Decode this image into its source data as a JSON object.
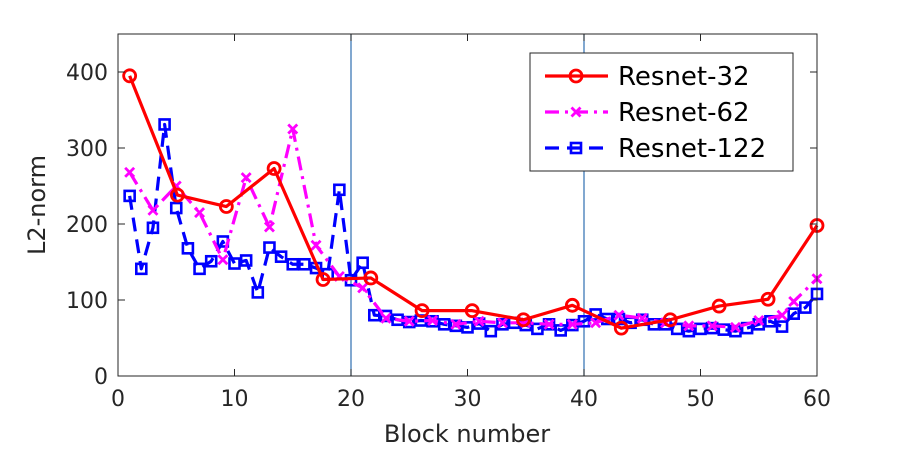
{
  "chart_data": {
    "type": "line",
    "title": "",
    "xlabel": "Block number",
    "ylabel": "L2-norm",
    "xlim": [
      0,
      60
    ],
    "ylim": [
      0,
      450
    ],
    "xticks": [
      0,
      10,
      20,
      30,
      40,
      50,
      60
    ],
    "yticks": [
      0,
      100,
      200,
      300,
      400
    ],
    "grid": false,
    "legend_position": "top-right",
    "vlines": [
      20,
      40
    ],
    "series": [
      {
        "name": "Resnet-32",
        "color": "#ff0000",
        "line": "solid",
        "marker": "circle",
        "x": [
          1,
          5.1,
          9.3,
          13.4,
          17.6,
          21.7,
          26.1,
          30.4,
          34.8,
          39,
          43.2,
          47.4,
          51.6,
          55.8,
          60
        ],
        "y": [
          395,
          238,
          223,
          273,
          127,
          129,
          86,
          86,
          74,
          93,
          63,
          74,
          92,
          101,
          198
        ]
      },
      {
        "name": "Resnet-62",
        "color": "#ff00ff",
        "line": "dashdot",
        "marker": "x",
        "x": [
          1,
          3,
          5,
          7,
          9,
          11,
          13,
          15,
          17,
          19,
          21,
          23,
          25,
          27,
          29,
          31,
          33,
          35,
          37,
          39,
          41,
          43,
          45,
          47,
          49,
          51,
          53,
          55,
          57,
          58,
          60
        ],
        "y": [
          268,
          218,
          250,
          215,
          153,
          261,
          196,
          325,
          172,
          131,
          116,
          76,
          72,
          73,
          68,
          72,
          70,
          70,
          68,
          68,
          70,
          80,
          76,
          70,
          66,
          66,
          64,
          73,
          80,
          98,
          128
        ]
      },
      {
        "name": "Resnet-122",
        "color": "#0000ff",
        "line": "dashed",
        "marker": "square",
        "x": [
          1,
          2,
          3,
          4,
          5,
          6,
          7,
          8,
          9,
          10,
          11,
          12,
          13,
          14,
          15,
          16,
          17,
          18,
          19,
          20,
          21,
          22,
          23,
          24,
          25,
          26,
          27,
          28,
          29,
          30,
          31,
          32,
          33,
          34,
          35,
          36,
          37,
          38,
          39,
          40,
          41,
          42,
          43,
          44,
          45,
          46,
          47,
          48,
          49,
          50,
          51,
          52,
          53,
          54,
          55,
          56,
          57,
          58,
          59,
          60
        ],
        "y": [
          237,
          141,
          195,
          331,
          221,
          168,
          141,
          151,
          177,
          148,
          152,
          110,
          169,
          157,
          147,
          147,
          142,
          134,
          245,
          126,
          149,
          80,
          79,
          74,
          71,
          73,
          72,
          68,
          66,
          64,
          69,
          59,
          68,
          70,
          67,
          62,
          68,
          60,
          67,
          72,
          81,
          75,
          75,
          70,
          74,
          68,
          68,
          62,
          59,
          62,
          63,
          61,
          59,
          63,
          68,
          72,
          65,
          82,
          90,
          108
        ]
      }
    ]
  }
}
